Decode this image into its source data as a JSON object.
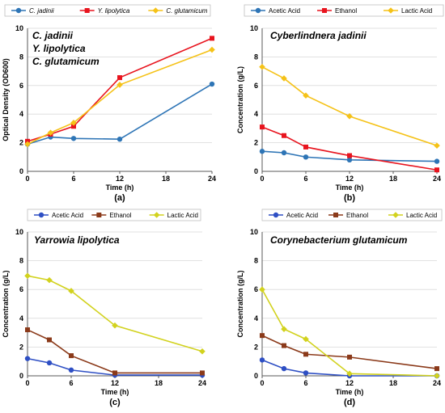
{
  "chart_data": [
    {
      "type": "line",
      "panel_label": "(a)",
      "title_lines": [
        "C. jadinii",
        "Y. lipolytica",
        "C. glutamicum"
      ],
      "xlabel": "Time (h)",
      "ylabel": "Optical Density (OD600)",
      "xlim": [
        0,
        24
      ],
      "ylim": [
        0,
        10
      ],
      "xticks": [
        "0",
        "6",
        "12",
        "18",
        "24"
      ],
      "yticks": [
        "0",
        "2",
        "4",
        "6",
        "8",
        "10"
      ],
      "x": [
        0,
        3,
        6,
        12,
        24
      ],
      "legend": "top",
      "series": [
        {
          "name": "C. jadinii",
          "color": "#2e75b6",
          "marker": "circle",
          "values": [
            1.9,
            2.4,
            2.3,
            2.25,
            6.1
          ]
        },
        {
          "name": "Y. lipolytica",
          "color": "#e8141e",
          "marker": "square",
          "values": [
            2.1,
            2.6,
            3.15,
            6.55,
            9.3
          ]
        },
        {
          "name": "C. glutamicum",
          "color": "#f5c218",
          "marker": "diamond",
          "values": [
            1.9,
            2.7,
            3.4,
            6.05,
            8.5
          ]
        }
      ]
    },
    {
      "type": "line",
      "panel_label": "(b)",
      "title_lines": [
        "Cyberlindnera jadinii"
      ],
      "xlabel": "Time (h)",
      "ylabel": "Concentration (g/L)",
      "xlim": [
        0,
        24
      ],
      "ylim": [
        0,
        10
      ],
      "xticks": [
        "0",
        "6",
        "12",
        "18",
        "24"
      ],
      "yticks": [
        "0",
        "2",
        "4",
        "6",
        "8",
        "10"
      ],
      "x": [
        0,
        3,
        6,
        12,
        24
      ],
      "legend": "top",
      "series": [
        {
          "name": "Acetic Acid",
          "color": "#2e75b6",
          "marker": "circle",
          "values": [
            1.4,
            1.3,
            1.0,
            0.8,
            0.7
          ]
        },
        {
          "name": "Ethanol",
          "color": "#e8141e",
          "marker": "square",
          "values": [
            3.1,
            2.5,
            1.7,
            1.1,
            0.1
          ]
        },
        {
          "name": "Lactic Acid",
          "color": "#f5c218",
          "marker": "diamond",
          "values": [
            7.3,
            6.5,
            5.3,
            3.85,
            1.8
          ]
        }
      ]
    },
    {
      "type": "line",
      "panel_label": "(c)",
      "title_lines": [
        "Yarrowia lipolytica"
      ],
      "xlabel": "Time (h)",
      "ylabel": "Concentration (g/L)",
      "xlim": [
        0,
        24
      ],
      "ylim": [
        0,
        10
      ],
      "xticks": [
        "0",
        "6",
        "12",
        "18",
        "24"
      ],
      "yticks": [
        "0",
        "2",
        "4",
        "6",
        "8",
        "10"
      ],
      "x": [
        0,
        3,
        6,
        12,
        24
      ],
      "legend": "top",
      "series": [
        {
          "name": "Acetic Acid",
          "color": "#2e4fc4",
          "marker": "circle",
          "values": [
            1.2,
            0.9,
            0.4,
            0.05,
            0.05
          ]
        },
        {
          "name": "Ethanol",
          "color": "#8b3a1a",
          "marker": "square",
          "values": [
            3.2,
            2.5,
            1.4,
            0.2,
            0.2
          ]
        },
        {
          "name": "Lactic Acid",
          "color": "#d2d21e",
          "marker": "diamond",
          "values": [
            6.95,
            6.65,
            5.9,
            3.5,
            1.7
          ]
        }
      ]
    },
    {
      "type": "line",
      "panel_label": "(d)",
      "title_lines": [
        "Corynebacterium glutamicum"
      ],
      "xlabel": "Time (h)",
      "ylabel": "Concentration (g/L)",
      "xlim": [
        0,
        24
      ],
      "ylim": [
        0,
        10
      ],
      "xticks": [
        "0",
        "6",
        "12",
        "18",
        "24"
      ],
      "yticks": [
        "0",
        "2",
        "4",
        "6",
        "8",
        "10"
      ],
      "x": [
        0,
        3,
        6,
        12,
        24
      ],
      "legend": "top",
      "series": [
        {
          "name": "Acetic Acid",
          "color": "#2e4fc4",
          "marker": "circle",
          "values": [
            1.1,
            0.5,
            0.2,
            0.0,
            0.0
          ]
        },
        {
          "name": "Ethanol",
          "color": "#8b3a1a",
          "marker": "square",
          "values": [
            2.8,
            2.1,
            1.5,
            1.3,
            0.5
          ]
        },
        {
          "name": "Lactic Acid",
          "color": "#d2d21e",
          "marker": "diamond",
          "values": [
            6.0,
            3.25,
            2.55,
            0.15,
            0.0
          ]
        }
      ]
    }
  ]
}
